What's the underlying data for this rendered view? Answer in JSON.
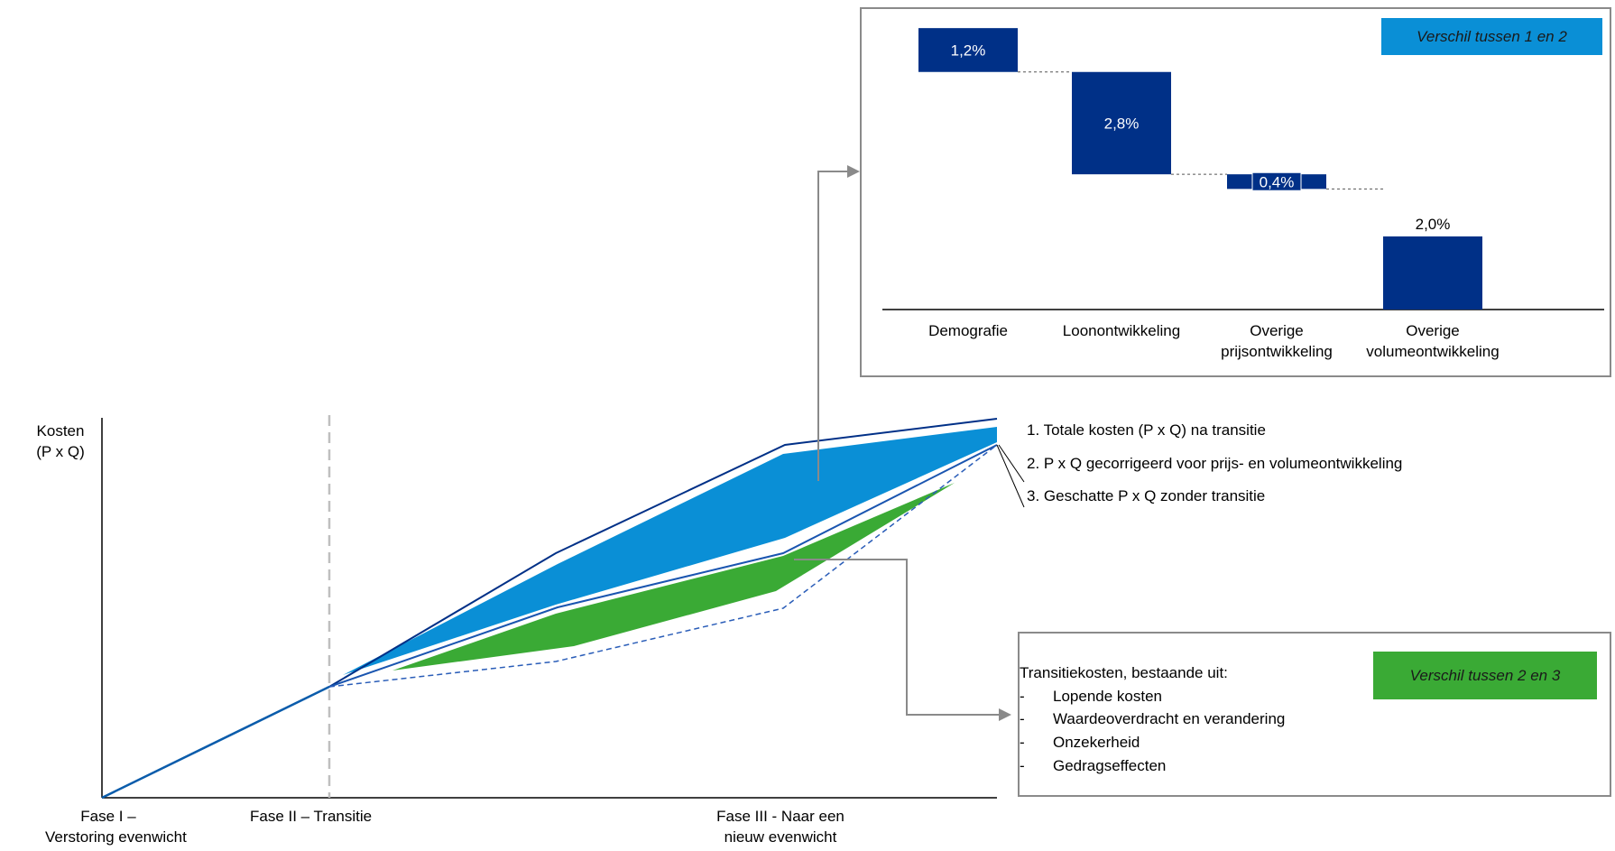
{
  "axis": {
    "y_label_line1": "Kosten",
    "y_label_line2": "(P x Q)",
    "phases": [
      {
        "line1": "Fase I –",
        "line2": "Verstoring evenwicht"
      },
      {
        "line1": "Fase II – Transitie",
        "line2": ""
      },
      {
        "line1": "Fase III  - Naar een",
        "line2": "nieuw evenwicht"
      }
    ]
  },
  "lines": {
    "l1": "1. Totale kosten (P x Q) na transitie",
    "l2": "2. P x Q gecorrigeerd voor prijs- en volumeontwikkeling",
    "l3": "3. Geschatte P x Q zonder transitie"
  },
  "waterfall": {
    "tag": "Verschil tussen 1 en 2",
    "bars": [
      {
        "category_line1": "Demografie",
        "category_line2": "",
        "value": 1.2,
        "label": "1,2%"
      },
      {
        "category_line1": "Loonontwikkeling",
        "category_line2": "",
        "value": 2.8,
        "label": "2,8%"
      },
      {
        "category_line1": "Overige",
        "category_line2": "prijsontwikkeling",
        "value": 0.4,
        "label": "0,4%"
      },
      {
        "category_line1": "Overige",
        "category_line2": "volumeontwikkeling",
        "value": 2.0,
        "label": "2,0%"
      }
    ]
  },
  "transition": {
    "tag": "Verschil tussen 2 en 3",
    "heading": "Transitiekosten, bestaande uit:",
    "items": [
      {
        "bullet": "-",
        "text": "Lopende kosten"
      },
      {
        "bullet": "-",
        "text": "Waardeoverdracht en verandering"
      },
      {
        "bullet": "-",
        "text": "Onzekerheid"
      },
      {
        "bullet": "-",
        "text": "Gedragseffecten"
      }
    ]
  },
  "colors": {
    "navy": "#003087",
    "blue": "#0a8fd6",
    "green": "#3aaa35",
    "grey": "#8a8a8a"
  }
}
